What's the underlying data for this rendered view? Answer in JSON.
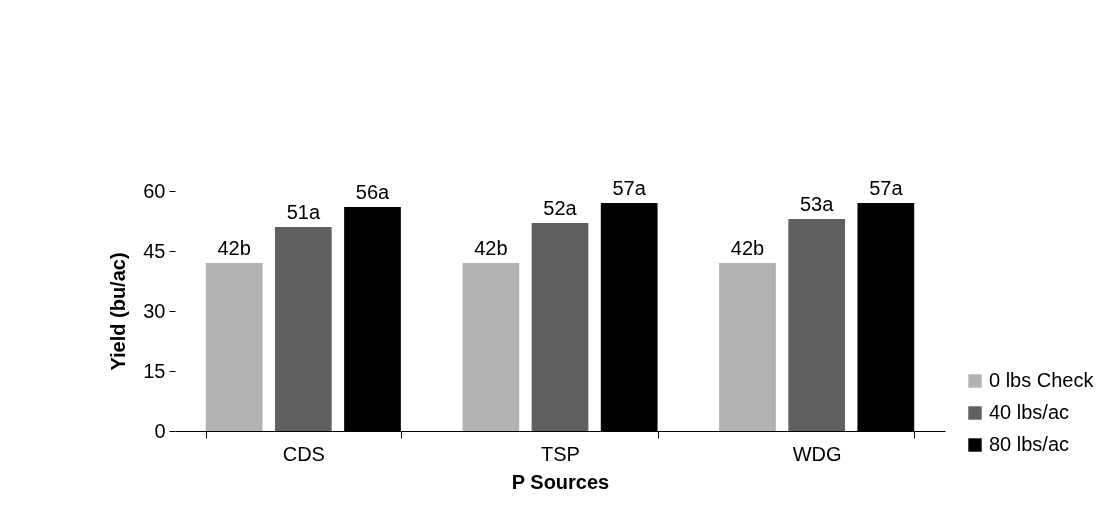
{
  "chart_data": {
    "type": "bar",
    "xlabel": "P Sources",
    "ylabel": "Yield (bu/ac)",
    "categories": [
      "CDS",
      "TSP",
      "WDG"
    ],
    "series": [
      {
        "name": "0 lbs Check",
        "color": "#b2b2b2",
        "values": [
          42,
          42,
          42
        ],
        "value_labels": [
          "42b",
          "42b",
          "42b"
        ]
      },
      {
        "name": "40 lbs/ac",
        "color": "#606060",
        "values": [
          51,
          52,
          53
        ],
        "value_labels": [
          "51a",
          "52a",
          "53a"
        ]
      },
      {
        "name": "80 lbs/ac",
        "color": "#000000",
        "values": [
          56,
          57,
          57
        ],
        "value_labels": [
          "56a",
          "57a",
          "57a"
        ]
      }
    ],
    "ylim": [
      0,
      60
    ],
    "yticks": [
      0,
      15,
      30,
      45,
      60
    ],
    "grid": false,
    "legend": "right"
  }
}
